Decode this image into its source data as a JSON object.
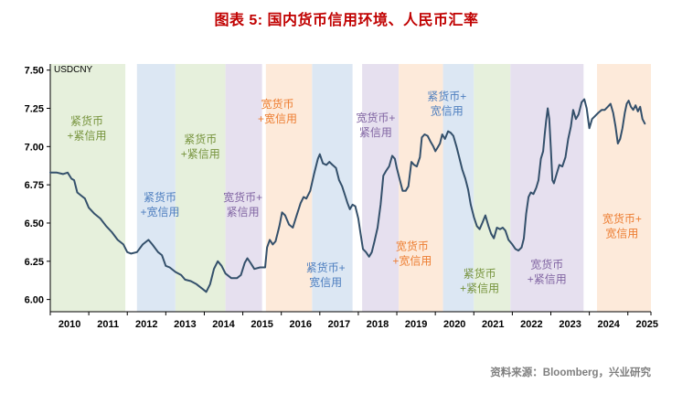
{
  "title": "图表 5:  国内货币信用环境、人民币汇率",
  "source": "资料来源：Bloomberg，兴业研究",
  "colors": {
    "title": "#c00000",
    "source": "#7f7f7f",
    "axis": "#000000",
    "line": "#34506b",
    "band_fills": {
      "green": "#e6f0dc",
      "blue": "#dce7f3",
      "purple": "#e6e0ef",
      "orange": "#fdeada"
    },
    "label_colors": {
      "green": "#76933c",
      "blue": "#4d7ebf",
      "purple": "#8064a2",
      "orange": "#ed7d31"
    }
  },
  "chart_data": {
    "type": "line",
    "title": "图表 5: 国内货币信用环境、人民币汇率",
    "unit_label": "USDCNY",
    "xlabel": "",
    "ylabel": "",
    "legend": "none",
    "grid": false,
    "ylim": [
      6.0,
      7.5
    ],
    "x_range": [
      2010.0,
      2025.6
    ],
    "y_range_drawn": [
      5.92,
      7.54
    ],
    "x_ticks": [
      "2010",
      "2011",
      "2012",
      "2013",
      "2014",
      "2015",
      "2016",
      "2017",
      "2018",
      "2019",
      "2020",
      "2021",
      "2022",
      "2023",
      "2024",
      "2025"
    ],
    "y_ticks": [
      {
        "value": 7.5,
        "label": "7.50"
      },
      {
        "value": 7.25,
        "label": "7.25"
      },
      {
        "value": 7.0,
        "label": "7.00"
      },
      {
        "value": 6.75,
        "label": "6.75"
      },
      {
        "value": 6.5,
        "label": "6.50"
      },
      {
        "value": 6.25,
        "label": "6.25"
      },
      {
        "value": 6.0,
        "label": "6.00"
      }
    ],
    "bands": [
      {
        "regime": "紧货币+紧信用",
        "color": "green",
        "x0": 2010.0,
        "x1": 2011.95
      },
      {
        "regime": "紧货币+宽信用",
        "color": "blue",
        "x0": 2012.25,
        "x1": 2013.25
      },
      {
        "regime": "紧货币+紧信用",
        "color": "green",
        "x0": 2013.25,
        "x1": 2014.55
      },
      {
        "regime": "宽货币+紧信用",
        "color": "purple",
        "x0": 2014.55,
        "x1": 2015.5
      },
      {
        "regime": "宽货币+宽信用",
        "color": "orange",
        "x0": 2015.6,
        "x1": 2016.8
      },
      {
        "regime": "紧货币+宽信用",
        "color": "blue",
        "x0": 2016.8,
        "x1": 2017.85
      },
      {
        "regime": "宽货币+紧信用",
        "color": "purple",
        "x0": 2018.1,
        "x1": 2019.05
      },
      {
        "regime": "宽货币+宽信用",
        "color": "orange",
        "x0": 2019.05,
        "x1": 2020.2
      },
      {
        "regime": "紧货币+宽信用",
        "color": "blue",
        "x0": 2020.2,
        "x1": 2021.0
      },
      {
        "regime": "紧货币+紧信用",
        "color": "green",
        "x0": 2021.0,
        "x1": 2021.95
      },
      {
        "regime": "宽货币+紧信用",
        "color": "purple",
        "x0": 2021.95,
        "x1": 2023.85
      },
      {
        "regime": "宽货币+宽信用",
        "color": "orange",
        "x0": 2024.2,
        "x1": 2025.6
      }
    ],
    "annotations": [
      {
        "lines": [
          "紧货币",
          "+紧信用"
        ],
        "color": "green",
        "x": 2010.95,
        "y": 7.12
      },
      {
        "lines": [
          "紧货币",
          "+宽信用"
        ],
        "color": "blue",
        "x": 2012.85,
        "y": 6.62
      },
      {
        "lines": [
          "紧货币",
          "+紧信用"
        ],
        "color": "green",
        "x": 2013.9,
        "y": 7.0
      },
      {
        "lines": [
          "宽货币+",
          "紧信用"
        ],
        "color": "purple",
        "x": 2015.0,
        "y": 6.62
      },
      {
        "lines": [
          "宽货币",
          "+宽信用"
        ],
        "color": "orange",
        "x": 2015.9,
        "y": 7.23
      },
      {
        "lines": [
          "紧货币+",
          "宽信用"
        ],
        "color": "blue",
        "x": 2017.15,
        "y": 6.16
      },
      {
        "lines": [
          "宽货币+",
          "紧信用"
        ],
        "color": "purple",
        "x": 2018.45,
        "y": 7.14
      },
      {
        "lines": [
          "宽货币",
          "+宽信用"
        ],
        "color": "orange",
        "x": 2019.4,
        "y": 6.3
      },
      {
        "lines": [
          "紧货币+",
          "宽信用"
        ],
        "color": "blue",
        "x": 2020.3,
        "y": 7.28
      },
      {
        "lines": [
          "紧货币",
          "+紧信用"
        ],
        "color": "green",
        "x": 2021.15,
        "y": 6.12
      },
      {
        "lines": [
          "宽货币",
          "+紧信用"
        ],
        "color": "purple",
        "x": 2022.9,
        "y": 6.18
      },
      {
        "lines": [
          "宽货币+",
          "宽信用"
        ],
        "color": "orange",
        "x": 2024.85,
        "y": 6.48
      }
    ],
    "series": [
      {
        "name": "USDCNY",
        "points": [
          [
            2010.0,
            6.83
          ],
          [
            2010.17,
            6.83
          ],
          [
            2010.33,
            6.82
          ],
          [
            2010.45,
            6.83
          ],
          [
            2010.55,
            6.79
          ],
          [
            2010.62,
            6.78
          ],
          [
            2010.7,
            6.7
          ],
          [
            2010.8,
            6.68
          ],
          [
            2010.9,
            6.66
          ],
          [
            2011.0,
            6.6
          ],
          [
            2011.15,
            6.56
          ],
          [
            2011.3,
            6.53
          ],
          [
            2011.45,
            6.48
          ],
          [
            2011.6,
            6.44
          ],
          [
            2011.75,
            6.39
          ],
          [
            2011.9,
            6.36
          ],
          [
            2012.0,
            6.31
          ],
          [
            2012.1,
            6.3
          ],
          [
            2012.25,
            6.31
          ],
          [
            2012.4,
            6.36
          ],
          [
            2012.55,
            6.39
          ],
          [
            2012.65,
            6.36
          ],
          [
            2012.8,
            6.31
          ],
          [
            2012.9,
            6.29
          ],
          [
            2013.0,
            6.22
          ],
          [
            2013.1,
            6.21
          ],
          [
            2013.25,
            6.18
          ],
          [
            2013.4,
            6.16
          ],
          [
            2013.5,
            6.13
          ],
          [
            2013.65,
            6.12
          ],
          [
            2013.8,
            6.1
          ],
          [
            2013.95,
            6.07
          ],
          [
            2014.05,
            6.05
          ],
          [
            2014.15,
            6.1
          ],
          [
            2014.25,
            6.2
          ],
          [
            2014.35,
            6.25
          ],
          [
            2014.45,
            6.22
          ],
          [
            2014.55,
            6.17
          ],
          [
            2014.7,
            6.14
          ],
          [
            2014.85,
            6.14
          ],
          [
            2014.95,
            6.16
          ],
          [
            2015.05,
            6.24
          ],
          [
            2015.12,
            6.27
          ],
          [
            2015.2,
            6.24
          ],
          [
            2015.3,
            6.2
          ],
          [
            2015.45,
            6.21
          ],
          [
            2015.58,
            6.21
          ],
          [
            2015.63,
            6.34
          ],
          [
            2015.7,
            6.39
          ],
          [
            2015.78,
            6.36
          ],
          [
            2015.85,
            6.38
          ],
          [
            2015.95,
            6.48
          ],
          [
            2016.02,
            6.57
          ],
          [
            2016.1,
            6.55
          ],
          [
            2016.2,
            6.49
          ],
          [
            2016.3,
            6.47
          ],
          [
            2016.4,
            6.55
          ],
          [
            2016.5,
            6.63
          ],
          [
            2016.58,
            6.67
          ],
          [
            2016.65,
            6.66
          ],
          [
            2016.75,
            6.71
          ],
          [
            2016.85,
            6.82
          ],
          [
            2016.95,
            6.92
          ],
          [
            2017.0,
            6.95
          ],
          [
            2017.08,
            6.89
          ],
          [
            2017.17,
            6.88
          ],
          [
            2017.25,
            6.9
          ],
          [
            2017.33,
            6.88
          ],
          [
            2017.42,
            6.86
          ],
          [
            2017.5,
            6.78
          ],
          [
            2017.58,
            6.74
          ],
          [
            2017.67,
            6.67
          ],
          [
            2017.72,
            6.63
          ],
          [
            2017.78,
            6.59
          ],
          [
            2017.85,
            6.62
          ],
          [
            2017.92,
            6.61
          ],
          [
            2018.0,
            6.53
          ],
          [
            2018.06,
            6.43
          ],
          [
            2018.12,
            6.33
          ],
          [
            2018.2,
            6.31
          ],
          [
            2018.28,
            6.28
          ],
          [
            2018.35,
            6.31
          ],
          [
            2018.42,
            6.38
          ],
          [
            2018.5,
            6.47
          ],
          [
            2018.58,
            6.62
          ],
          [
            2018.65,
            6.81
          ],
          [
            2018.72,
            6.84
          ],
          [
            2018.8,
            6.87
          ],
          [
            2018.88,
            6.94
          ],
          [
            2018.95,
            6.92
          ],
          [
            2019.0,
            6.86
          ],
          [
            2019.08,
            6.78
          ],
          [
            2019.15,
            6.71
          ],
          [
            2019.23,
            6.71
          ],
          [
            2019.3,
            6.74
          ],
          [
            2019.38,
            6.9
          ],
          [
            2019.45,
            6.88
          ],
          [
            2019.52,
            6.87
          ],
          [
            2019.6,
            6.93
          ],
          [
            2019.65,
            7.06
          ],
          [
            2019.72,
            7.08
          ],
          [
            2019.8,
            7.07
          ],
          [
            2019.88,
            7.03
          ],
          [
            2019.95,
            7.0
          ],
          [
            2020.0,
            6.97
          ],
          [
            2020.05,
            6.99
          ],
          [
            2020.12,
            7.02
          ],
          [
            2020.18,
            7.08
          ],
          [
            2020.25,
            7.05
          ],
          [
            2020.33,
            7.1
          ],
          [
            2020.4,
            7.09
          ],
          [
            2020.47,
            7.07
          ],
          [
            2020.55,
            7.0
          ],
          [
            2020.63,
            6.92
          ],
          [
            2020.7,
            6.85
          ],
          [
            2020.78,
            6.79
          ],
          [
            2020.85,
            6.72
          ],
          [
            2020.92,
            6.62
          ],
          [
            2021.0,
            6.54
          ],
          [
            2021.08,
            6.48
          ],
          [
            2021.15,
            6.46
          ],
          [
            2021.22,
            6.5
          ],
          [
            2021.3,
            6.55
          ],
          [
            2021.38,
            6.48
          ],
          [
            2021.45,
            6.43
          ],
          [
            2021.52,
            6.4
          ],
          [
            2021.6,
            6.47
          ],
          [
            2021.68,
            6.46
          ],
          [
            2021.75,
            6.47
          ],
          [
            2021.82,
            6.45
          ],
          [
            2021.9,
            6.39
          ],
          [
            2022.0,
            6.36
          ],
          [
            2022.08,
            6.33
          ],
          [
            2022.16,
            6.32
          ],
          [
            2022.24,
            6.34
          ],
          [
            2022.3,
            6.4
          ],
          [
            2022.36,
            6.56
          ],
          [
            2022.42,
            6.67
          ],
          [
            2022.48,
            6.7
          ],
          [
            2022.55,
            6.69
          ],
          [
            2022.62,
            6.73
          ],
          [
            2022.68,
            6.78
          ],
          [
            2022.74,
            6.92
          ],
          [
            2022.8,
            6.97
          ],
          [
            2022.84,
            7.08
          ],
          [
            2022.88,
            7.17
          ],
          [
            2022.92,
            7.25
          ],
          [
            2022.96,
            7.18
          ],
          [
            2023.0,
            6.99
          ],
          [
            2023.04,
            6.78
          ],
          [
            2023.08,
            6.76
          ],
          [
            2023.15,
            6.82
          ],
          [
            2023.22,
            6.88
          ],
          [
            2023.3,
            6.87
          ],
          [
            2023.38,
            6.93
          ],
          [
            2023.45,
            7.05
          ],
          [
            2023.52,
            7.13
          ],
          [
            2023.58,
            7.24
          ],
          [
            2023.65,
            7.18
          ],
          [
            2023.72,
            7.21
          ],
          [
            2023.8,
            7.29
          ],
          [
            2023.87,
            7.31
          ],
          [
            2023.93,
            7.25
          ],
          [
            2024.0,
            7.12
          ],
          [
            2024.07,
            7.18
          ],
          [
            2024.15,
            7.2
          ],
          [
            2024.23,
            7.22
          ],
          [
            2024.32,
            7.24
          ],
          [
            2024.4,
            7.24
          ],
          [
            2024.48,
            7.26
          ],
          [
            2024.55,
            7.28
          ],
          [
            2024.62,
            7.22
          ],
          [
            2024.68,
            7.13
          ],
          [
            2024.74,
            7.02
          ],
          [
            2024.8,
            7.05
          ],
          [
            2024.86,
            7.12
          ],
          [
            2024.92,
            7.22
          ],
          [
            2024.97,
            7.28
          ],
          [
            2025.02,
            7.3
          ],
          [
            2025.08,
            7.26
          ],
          [
            2025.14,
            7.24
          ],
          [
            2025.2,
            7.27
          ],
          [
            2025.26,
            7.23
          ],
          [
            2025.32,
            7.26
          ],
          [
            2025.38,
            7.18
          ],
          [
            2025.44,
            7.15
          ]
        ]
      }
    ]
  }
}
